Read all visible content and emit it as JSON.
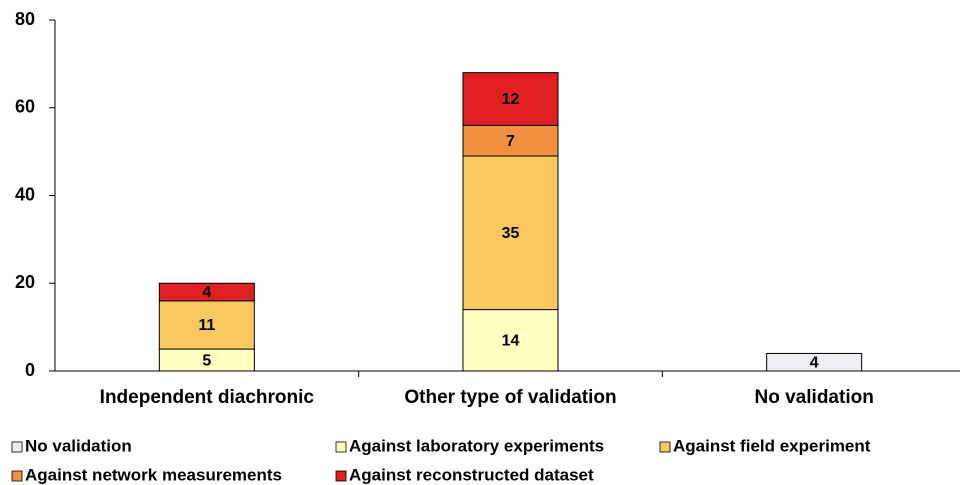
{
  "chart_data": {
    "type": "bar",
    "stacked": true,
    "categories": [
      "Independent diachronic",
      "Other type of validation",
      "No validation"
    ],
    "series": [
      {
        "name": "No validation",
        "color": "#eeeef6",
        "values": [
          null,
          null,
          4
        ]
      },
      {
        "name": "Against laboratory experiments",
        "color": "#ffffc0",
        "values": [
          5,
          14,
          null
        ]
      },
      {
        "name": "Against field experiment",
        "color": "#f9c95f",
        "values": [
          11,
          35,
          null
        ]
      },
      {
        "name": "Against network measurements",
        "color": "#f39040",
        "values": [
          null,
          7,
          null
        ]
      },
      {
        "name": "Against reconstructed dataset",
        "color": "#e02020",
        "values": [
          4,
          12,
          null
        ]
      }
    ],
    "ylim": [
      0,
      80
    ],
    "yticks": [
      0,
      20,
      40,
      60,
      80
    ],
    "grid": false
  }
}
